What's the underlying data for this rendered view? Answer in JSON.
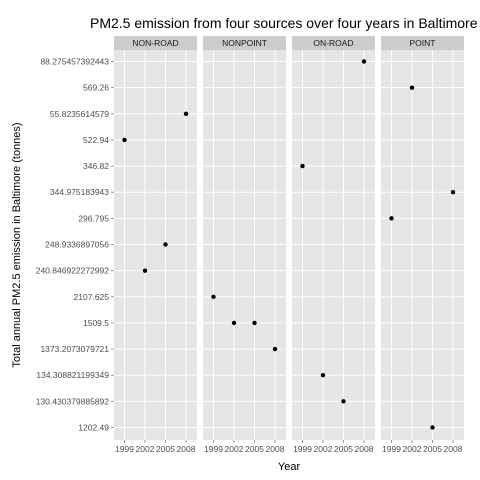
{
  "chart_data": {
    "type": "scatter",
    "title": "PM2.5 emission from four sources over four years in Baltimore",
    "xlabel": "Year",
    "ylabel": "Total annual PM2.5 emission in Baltimore (tonnes)",
    "x_ticks": [
      "1999",
      "2002",
      "2005",
      "2008"
    ],
    "y_categories": [
      "1202.49",
      "130.430379885892",
      "134.308821199349",
      "1373.2073079721",
      "1509.5",
      "2107.625",
      "240.846922272992",
      "248.9336897056",
      "296.795",
      "344.975183943",
      "346.82",
      "522.94",
      "55.8235614579",
      "569.26",
      "88.275457392443"
    ],
    "facets": [
      "NON-ROAD",
      "NONPOINT",
      "ON-ROAD",
      "POINT"
    ],
    "points": [
      {
        "facet": "NON-ROAD",
        "x": "1999",
        "y": "522.94"
      },
      {
        "facet": "NON-ROAD",
        "x": "2002",
        "y": "240.846922272992"
      },
      {
        "facet": "NON-ROAD",
        "x": "2005",
        "y": "248.9336897056"
      },
      {
        "facet": "NON-ROAD",
        "x": "2008",
        "y": "55.8235614579"
      },
      {
        "facet": "NONPOINT",
        "x": "1999",
        "y": "2107.625"
      },
      {
        "facet": "NONPOINT",
        "x": "2002",
        "y": "1509.5"
      },
      {
        "facet": "NONPOINT",
        "x": "2005",
        "y": "1509.5"
      },
      {
        "facet": "NONPOINT",
        "x": "2008",
        "y": "1373.2073079721"
      },
      {
        "facet": "ON-ROAD",
        "x": "1999",
        "y": "346.82"
      },
      {
        "facet": "ON-ROAD",
        "x": "2002",
        "y": "134.308821199349"
      },
      {
        "facet": "ON-ROAD",
        "x": "2005",
        "y": "130.430379885892"
      },
      {
        "facet": "ON-ROAD",
        "x": "2008",
        "y": "88.275457392443"
      },
      {
        "facet": "POINT",
        "x": "1999",
        "y": "296.795"
      },
      {
        "facet": "POINT",
        "x": "2002",
        "y": "569.26"
      },
      {
        "facet": "POINT",
        "x": "2005",
        "y": "1202.49"
      },
      {
        "facet": "POINT",
        "x": "2008",
        "y": "344.975183943"
      }
    ],
    "grid": true,
    "colors": {
      "panel": "#e5e5e5",
      "grid": "#ffffff",
      "strip": "#cccccc",
      "point": "#000000"
    }
  }
}
